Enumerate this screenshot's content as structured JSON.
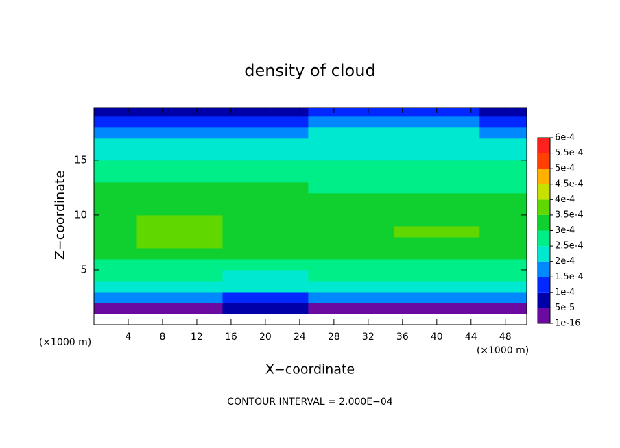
{
  "chart_data": {
    "type": "contour",
    "title": "density of cloud",
    "xlabel": "X−coordinate",
    "ylabel": "Z−coordinate",
    "unit_label": "(×1000 m)",
    "footer": "CONTOUR INTERVAL = 2.000E−04",
    "xlim": [
      0,
      50.5
    ],
    "ylim": [
      0,
      19.8
    ],
    "xticks": [
      4,
      8,
      12,
      16,
      20,
      24,
      28,
      32,
      36,
      40,
      44,
      48
    ],
    "yticks": [
      5,
      10,
      15
    ],
    "x": [
      0,
      10,
      20,
      30,
      40,
      50
    ],
    "z": [
      0.5,
      1.5,
      2.5,
      3.5,
      4.5,
      5.5,
      6.5,
      7.5,
      8.5,
      9.5,
      10.5,
      11.5,
      12.5,
      13.5,
      14.5,
      15.5,
      16.5,
      17.5,
      18.5,
      19.5
    ],
    "values": [
      [
        0,
        0,
        0,
        0,
        0,
        0
      ],
      [
        4e-05,
        3e-05,
        5e-05,
        4e-05,
        3e-05,
        4e-05
      ],
      [
        0.00016,
        0.00015,
        0.00014,
        0.00017,
        0.00015,
        0.00016
      ],
      [
        0.00022,
        0.00021,
        0.0002,
        0.00022,
        0.00021,
        0.00022
      ],
      [
        0.00025,
        0.00025,
        0.00024,
        0.00025,
        0.00025,
        0.00025
      ],
      [
        0.00028,
        0.00029,
        0.00028,
        0.00028,
        0.00028,
        0.00028
      ],
      [
        0.00031,
        0.00032,
        0.00031,
        0.00031,
        0.00031,
        0.00031
      ],
      [
        0.00033,
        0.00035,
        0.00033,
        0.00033,
        0.00033,
        0.00033
      ],
      [
        0.00034,
        0.00036,
        0.00034,
        0.00034,
        0.00035,
        0.00034
      ],
      [
        0.00034,
        0.00035,
        0.00034,
        0.00034,
        0.00034,
        0.00034
      ],
      [
        0.00033,
        0.00034,
        0.00033,
        0.00033,
        0.00033,
        0.00033
      ],
      [
        0.00032,
        0.00032,
        0.00031,
        0.00031,
        0.00031,
        0.00031
      ],
      [
        0.0003,
        0.0003,
        0.0003,
        0.00029,
        0.00029,
        0.00029
      ],
      [
        0.00028,
        0.00028,
        0.00028,
        0.00027,
        0.00027,
        0.00027
      ],
      [
        0.00026,
        0.00026,
        0.00026,
        0.00025,
        0.00025,
        0.00025
      ],
      [
        0.00024,
        0.00024,
        0.00024,
        0.00024,
        0.00024,
        0.00023
      ],
      [
        0.00021,
        0.0002,
        0.00022,
        0.00022,
        0.00022,
        0.00021
      ],
      [
        0.00018,
        0.00017,
        0.00019,
        0.0002,
        0.0002,
        0.00018
      ],
      [
        0.00013,
        0.00013,
        0.00014,
        0.00015,
        0.00015,
        0.00013
      ],
      [
        8e-05,
        8e-05,
        9e-05,
        0.0001,
        0.0001,
        8e-05
      ]
    ],
    "levels": [
      {
        "value": 1e-16,
        "label": "1e-16"
      },
      {
        "value": 5e-05,
        "label": "5e-5"
      },
      {
        "value": 0.0001,
        "label": "1e-4"
      },
      {
        "value": 0.00015,
        "label": "1.5e-4"
      },
      {
        "value": 0.0002,
        "label": "2e-4"
      },
      {
        "value": 0.00025,
        "label": "2.5e-4"
      },
      {
        "value": 0.0003,
        "label": "3e-4"
      },
      {
        "value": 0.00035,
        "label": "3.5e-4"
      },
      {
        "value": 0.0004,
        "label": "4e-4"
      },
      {
        "value": 0.00045,
        "label": "4.5e-4"
      },
      {
        "value": 0.0005,
        "label": "5e-4"
      },
      {
        "value": 0.00055,
        "label": "5.5e-4"
      },
      {
        "value": 0.0006,
        "label": "6e-4"
      }
    ],
    "colors": [
      "#6a0aa0",
      "#0000a8",
      "#0028ff",
      "#0088ff",
      "#00e8d0",
      "#00ee88",
      "#10d030",
      "#60d800",
      "#c8e000",
      "#ffb000",
      "#ff4000",
      "#ff2020",
      "#ff8080"
    ]
  }
}
